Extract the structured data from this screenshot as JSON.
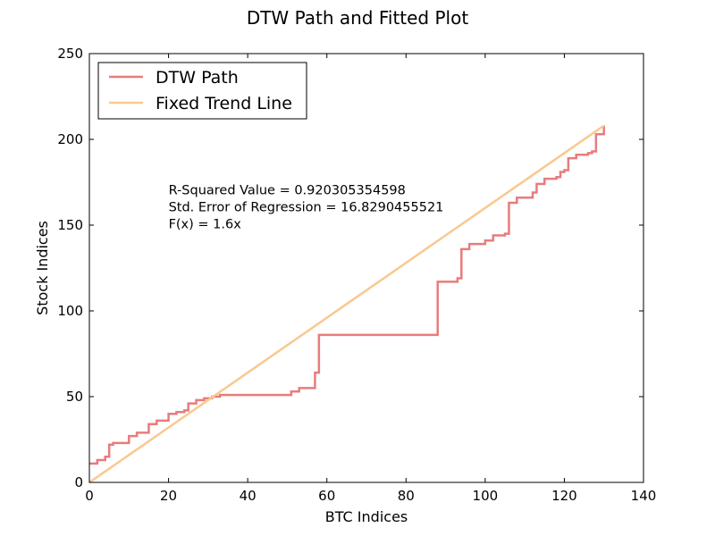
{
  "chart_data": {
    "type": "line",
    "title": "DTW Path and Fitted Plot",
    "xlabel": "BTC Indices",
    "ylabel": "Stock Indices",
    "xlim": [
      0,
      140
    ],
    "ylim": [
      0,
      250
    ],
    "xticks": [
      0,
      20,
      40,
      60,
      80,
      100,
      120,
      140
    ],
    "yticks": [
      0,
      50,
      100,
      150,
      200,
      250
    ],
    "grid": false,
    "legend_position": "top-left",
    "annotations": [
      "R-Squared Value = 0.920305354598",
      "Std. Error of Regression = 16.8290455521",
      "F(x) = 1.6x"
    ],
    "series": [
      {
        "name": "DTW Path",
        "color": "#e87c7c",
        "step": true,
        "points": [
          [
            0,
            11
          ],
          [
            2,
            13
          ],
          [
            4,
            15
          ],
          [
            5,
            17
          ],
          [
            5,
            22
          ],
          [
            6,
            23
          ],
          [
            10,
            23
          ],
          [
            10,
            27
          ],
          [
            12,
            29
          ],
          [
            15,
            31
          ],
          [
            15,
            34
          ],
          [
            17,
            36
          ],
          [
            20,
            37
          ],
          [
            20,
            40
          ],
          [
            22,
            41
          ],
          [
            24,
            42
          ],
          [
            25,
            42
          ],
          [
            25,
            46
          ],
          [
            27,
            48
          ],
          [
            29,
            49
          ],
          [
            31,
            50
          ],
          [
            33,
            51
          ],
          [
            48,
            51
          ],
          [
            51,
            53
          ],
          [
            53,
            55
          ],
          [
            57,
            55
          ],
          [
            57,
            64
          ],
          [
            58,
            66
          ],
          [
            58,
            86
          ],
          [
            88,
            117
          ],
          [
            93,
            119
          ],
          [
            94,
            136
          ],
          [
            96,
            139
          ],
          [
            100,
            141
          ],
          [
            102,
            144
          ],
          [
            105,
            145
          ],
          [
            106,
            148
          ],
          [
            106,
            163
          ],
          [
            108,
            166
          ],
          [
            112,
            169
          ],
          [
            113,
            174
          ],
          [
            115,
            177
          ],
          [
            118,
            178
          ],
          [
            119,
            181
          ],
          [
            120,
            182
          ],
          [
            121,
            189
          ],
          [
            123,
            191
          ],
          [
            126,
            192
          ],
          [
            127,
            193
          ],
          [
            128,
            196
          ],
          [
            128,
            203
          ],
          [
            130,
            208
          ]
        ]
      },
      {
        "name": "Fixed Trend Line",
        "color": "#f8c98f",
        "points": [
          [
            0,
            0
          ],
          [
            130,
            208
          ]
        ]
      }
    ]
  }
}
